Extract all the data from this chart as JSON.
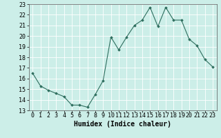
{
  "x": [
    0,
    1,
    2,
    3,
    4,
    5,
    6,
    7,
    8,
    9,
    10,
    11,
    12,
    13,
    14,
    15,
    16,
    17,
    18,
    19,
    20,
    21,
    22,
    23
  ],
  "y": [
    16.5,
    15.3,
    14.9,
    14.6,
    14.3,
    13.5,
    13.5,
    13.3,
    14.5,
    15.8,
    19.9,
    18.7,
    19.9,
    21.0,
    21.5,
    22.7,
    20.9,
    22.7,
    21.5,
    21.5,
    19.7,
    19.1,
    17.8,
    17.1
  ],
  "xlim": [
    -0.5,
    23.5
  ],
  "ylim": [
    13,
    23
  ],
  "yticks": [
    13,
    14,
    15,
    16,
    17,
    18,
    19,
    20,
    21,
    22,
    23
  ],
  "xticks": [
    0,
    1,
    2,
    3,
    4,
    5,
    6,
    7,
    8,
    9,
    10,
    11,
    12,
    13,
    14,
    15,
    16,
    17,
    18,
    19,
    20,
    21,
    22,
    23
  ],
  "xlabel": "Humidex (Indice chaleur)",
  "line_color": "#2e6e5e",
  "marker_color": "#2e6e5e",
  "bg_color": "#cceee8",
  "grid_color": "#ffffff",
  "tick_fontsize": 6,
  "label_fontsize": 7
}
